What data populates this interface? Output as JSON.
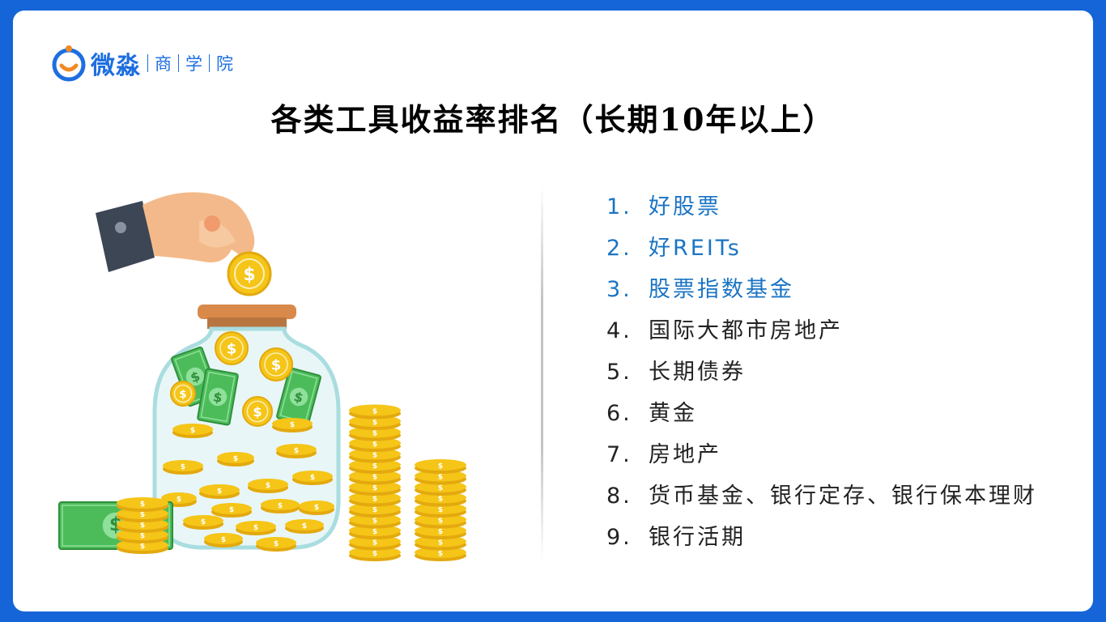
{
  "logo": {
    "name": "微淼",
    "sub": [
      "商",
      "学",
      "院"
    ]
  },
  "title": "各类工具收益率排名（长期10年以上）",
  "colors": {
    "background": "#1565d8",
    "highlight": "#1a74c4",
    "text": "#222222",
    "logo": "#1d6ee0",
    "coin": "#f5c518",
    "bill": "#4cbc5a"
  },
  "illustration": {
    "description_icon": "piggy-jar-coins-icon",
    "coin_symbol": "$"
  },
  "rankings": [
    {
      "num": "1.",
      "label": "好股票",
      "highlight": true
    },
    {
      "num": "2.",
      "label": "好REITs",
      "highlight": true
    },
    {
      "num": "3.",
      "label": "股票指数基金",
      "highlight": true
    },
    {
      "num": "4.",
      "label": "国际大都市房地产",
      "highlight": false
    },
    {
      "num": "5.",
      "label": "长期债券",
      "highlight": false
    },
    {
      "num": "6.",
      "label": "黄金",
      "highlight": false
    },
    {
      "num": "7.",
      "label": "房地产",
      "highlight": false
    },
    {
      "num": "8.",
      "label": "货币基金、银行定存、银行保本理财",
      "highlight": false
    },
    {
      "num": "9.",
      "label": "银行活期",
      "highlight": false
    }
  ]
}
